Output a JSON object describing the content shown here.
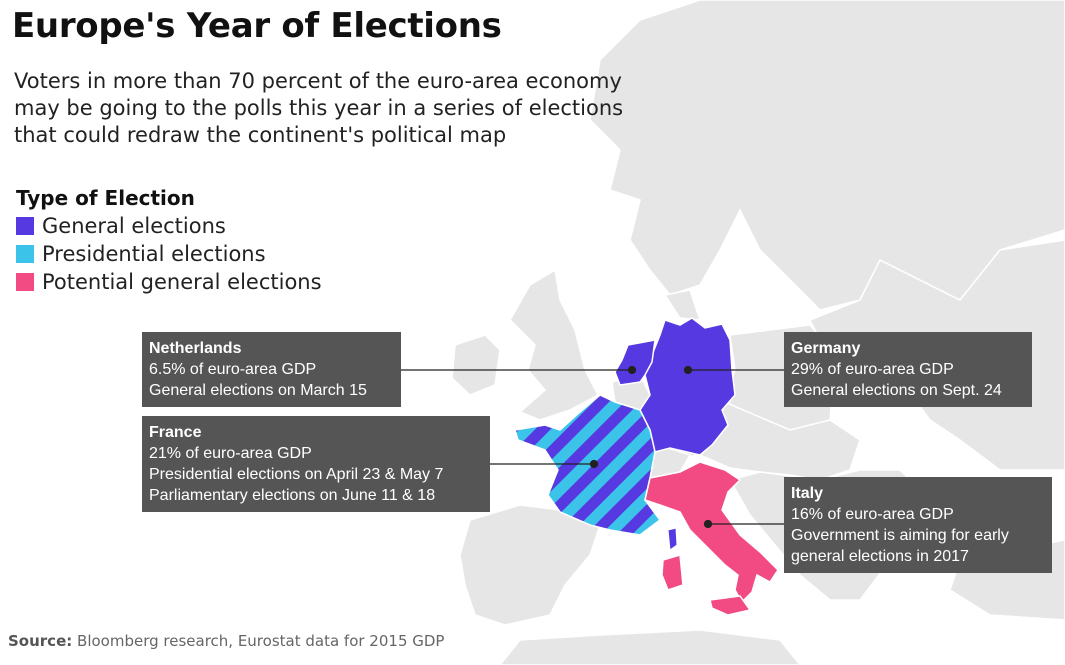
{
  "title": "Europe's Year of Elections",
  "subtitle": "Voters in more than 70 percent of the euro-area economy may be going to the polls this year in a series of elections that could redraw the continent's political map",
  "legend": {
    "title": "Type of Election",
    "items": [
      {
        "label": "General elections",
        "color": "#5639e0"
      },
      {
        "label": "Presidential elections",
        "color": "#3cc3ea"
      },
      {
        "label": "Potential general elections",
        "color": "#f24a82"
      }
    ]
  },
  "colors": {
    "background_land": "#e6e6e6",
    "border": "#ffffff",
    "callout_bg": "#555555"
  },
  "callouts": {
    "netherlands": {
      "name": "Netherlands",
      "line1": "6.5% of euro-area GDP",
      "line2": "General elections on March 15"
    },
    "germany": {
      "name": "Germany",
      "line1": "29% of euro-area GDP",
      "line2": "General elections on Sept. 24"
    },
    "france": {
      "name": "France",
      "line1": "21% of euro-area GDP",
      "line2": "Presidential elections on April 23 & May 7",
      "line3": "Parliamentary elections on June 11 & 18"
    },
    "italy": {
      "name": "Italy",
      "line1": "16% of euro-area GDP",
      "line2": "Government is aiming for early",
      "line3": "general elections in 2017"
    }
  },
  "source": {
    "label": "Source:",
    "text": "Bloomberg research, Eurostat data for 2015 GDP"
  }
}
